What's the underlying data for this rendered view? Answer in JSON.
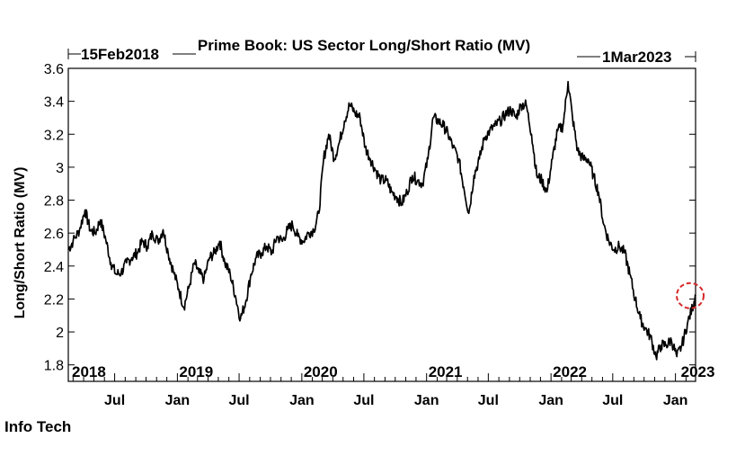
{
  "chart_data": {
    "type": "line",
    "title": "Prime Book: US Sector Long/Short Ratio (MV)",
    "ylabel": "Long/Short Ratio (MV)",
    "xlabel": "",
    "date_range": {
      "start": "15Feb2018",
      "end": "1Mar2023"
    },
    "ylim": [
      1.7,
      3.6
    ],
    "y_ticks": [
      "1.8",
      "2",
      "2.2",
      "2.4",
      "2.6",
      "2.8",
      "3",
      "3.2",
      "3.4",
      "3.6"
    ],
    "x_year_labels": [
      "2018",
      "2019",
      "2020",
      "2021",
      "2022",
      "2023"
    ],
    "x_month_labels": [
      "Jul",
      "Jan",
      "Jul",
      "Jan",
      "Jul",
      "Jan",
      "Jul",
      "Jan",
      "Jul",
      "Jan"
    ],
    "footer_label": "Info Tech",
    "grid": false,
    "legend": "none",
    "highlight": {
      "shape": "dashed-circle",
      "color": "#d62728",
      "x": "2023-03-01",
      "y": 2.22
    },
    "series": [
      {
        "line_color": "#000000",
        "x": [
          "2018-02-15",
          "2018-03-01",
          "2018-03-20",
          "2018-04-05",
          "2018-04-20",
          "2018-05-05",
          "2018-05-20",
          "2018-06-05",
          "2018-06-20",
          "2018-07-05",
          "2018-07-20",
          "2018-08-05",
          "2018-08-20",
          "2018-09-05",
          "2018-09-20",
          "2018-10-05",
          "2018-10-20",
          "2018-11-05",
          "2018-11-20",
          "2018-12-05",
          "2018-12-20",
          "2019-01-05",
          "2019-01-20",
          "2019-02-05",
          "2019-02-20",
          "2019-03-05",
          "2019-03-20",
          "2019-04-05",
          "2019-04-20",
          "2019-05-05",
          "2019-05-20",
          "2019-06-05",
          "2019-06-20",
          "2019-07-05",
          "2019-07-20",
          "2019-08-05",
          "2019-08-20",
          "2019-09-05",
          "2019-09-20",
          "2019-10-05",
          "2019-10-20",
          "2019-11-05",
          "2019-11-20",
          "2019-12-05",
          "2019-12-20",
          "2020-01-05",
          "2020-01-20",
          "2020-02-05",
          "2020-02-20",
          "2020-03-05",
          "2020-03-20",
          "2020-04-05",
          "2020-04-20",
          "2020-05-05",
          "2020-05-20",
          "2020-06-05",
          "2020-06-20",
          "2020-07-05",
          "2020-07-20",
          "2020-08-05",
          "2020-08-20",
          "2020-09-05",
          "2020-09-20",
          "2020-10-05",
          "2020-10-20",
          "2020-11-05",
          "2020-11-20",
          "2020-12-05",
          "2020-12-20",
          "2021-01-05",
          "2021-01-20",
          "2021-02-05",
          "2021-02-20",
          "2021-03-05",
          "2021-03-20",
          "2021-04-05",
          "2021-04-20",
          "2021-05-05",
          "2021-05-20",
          "2021-06-05",
          "2021-06-20",
          "2021-07-05",
          "2021-07-20",
          "2021-08-05",
          "2021-08-20",
          "2021-09-05",
          "2021-09-20",
          "2021-10-05",
          "2021-10-20",
          "2021-11-05",
          "2021-11-20",
          "2021-12-05",
          "2021-12-20",
          "2022-01-05",
          "2022-01-20",
          "2022-02-05",
          "2022-02-20",
          "2022-03-05",
          "2022-03-20",
          "2022-04-05",
          "2022-04-20",
          "2022-05-05",
          "2022-05-20",
          "2022-06-05",
          "2022-06-20",
          "2022-07-05",
          "2022-07-20",
          "2022-08-05",
          "2022-08-20",
          "2022-09-05",
          "2022-09-20",
          "2022-10-05",
          "2022-10-20",
          "2022-11-05",
          "2022-11-20",
          "2022-12-05",
          "2022-12-20",
          "2023-01-05",
          "2023-01-20",
          "2023-02-05",
          "2023-02-20",
          "2023-03-01"
        ],
        "values": [
          2.5,
          2.55,
          2.62,
          2.74,
          2.62,
          2.6,
          2.68,
          2.56,
          2.42,
          2.35,
          2.36,
          2.42,
          2.45,
          2.48,
          2.55,
          2.52,
          2.6,
          2.55,
          2.62,
          2.48,
          2.37,
          2.26,
          2.15,
          2.28,
          2.42,
          2.36,
          2.32,
          2.45,
          2.48,
          2.55,
          2.42,
          2.35,
          2.22,
          2.08,
          2.18,
          2.35,
          2.45,
          2.48,
          2.52,
          2.48,
          2.58,
          2.55,
          2.62,
          2.65,
          2.58,
          2.55,
          2.6,
          2.62,
          2.72,
          3.05,
          3.2,
          3.05,
          3.15,
          3.28,
          3.38,
          3.33,
          3.3,
          3.12,
          3.05,
          2.98,
          2.92,
          2.92,
          2.85,
          2.82,
          2.78,
          2.85,
          2.95,
          2.92,
          2.9,
          3.05,
          3.3,
          3.28,
          3.25,
          3.2,
          3.12,
          3.05,
          2.88,
          2.72,
          2.95,
          3.05,
          3.18,
          3.22,
          3.25,
          3.28,
          3.32,
          3.35,
          3.3,
          3.38,
          3.38,
          3.2,
          2.95,
          2.92,
          2.85,
          3.05,
          3.22,
          3.25,
          3.52,
          3.3,
          3.1,
          3.05,
          3.05,
          2.95,
          2.85,
          2.65,
          2.55,
          2.5,
          2.52,
          2.48,
          2.35,
          2.2,
          2.08,
          2.02,
          1.97,
          1.85,
          1.92,
          1.92,
          1.95,
          1.85,
          1.92,
          2.05,
          2.15,
          2.22
        ]
      }
    ]
  }
}
